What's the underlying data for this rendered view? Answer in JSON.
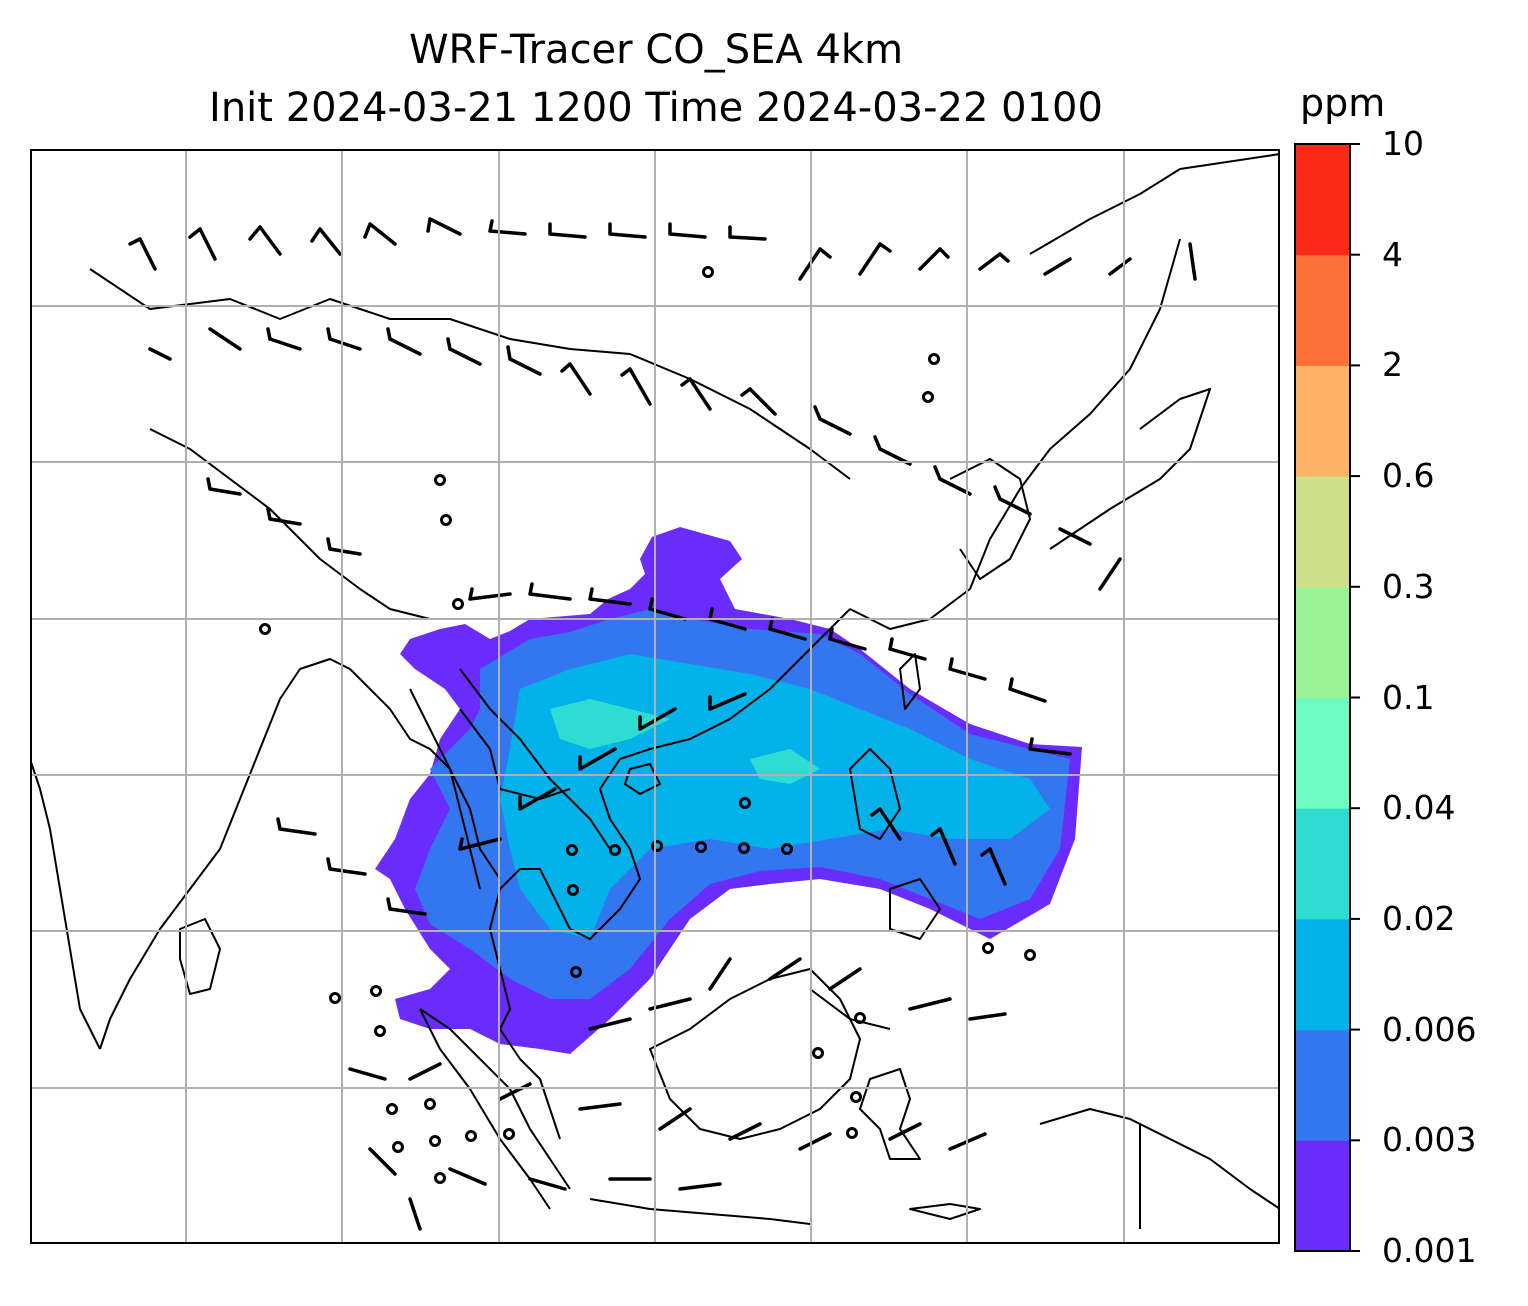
{
  "title": {
    "line1": "WRF-Tracer CO_SEA 4km",
    "line2": "Init 2024-03-21 1200 Time 2024-03-22 0100"
  },
  "colorbar": {
    "unit": "ppm",
    "ticks": [
      "0.001",
      "0.003",
      "0.006",
      "0.02",
      "0.04",
      "0.1",
      "0.3",
      "0.6",
      "2",
      "4",
      "10"
    ],
    "colors": [
      "#6a2cfa",
      "#3276f0",
      "#04b2ea",
      "#2fdcd2",
      "#6cfbc0",
      "#9af396",
      "#cfdf88",
      "#fdb266",
      "#fd7038",
      "#fc2819"
    ]
  },
  "map": {
    "coastline_color": "#000000",
    "gridline_color": "#b0b0b0",
    "grid_columns": 8,
    "grid_rows": 7,
    "layers": [
      "coastlines",
      "country-borders",
      "co-tracer-concentration",
      "wind-barbs",
      "calm-wind-circles",
      "lat-lon-gridlines"
    ]
  }
}
